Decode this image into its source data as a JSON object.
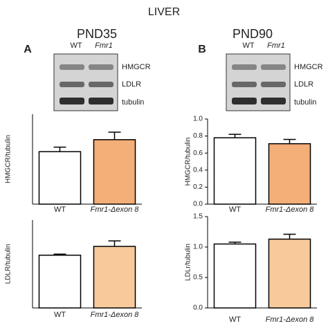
{
  "figure": {
    "title": "LIVER",
    "panels": [
      {
        "letter": "A",
        "label": "PND35",
        "lanes": [
          "WT",
          "Fmr1"
        ],
        "bands": [
          "HMGCR",
          "LDLR",
          "tubulin"
        ]
      },
      {
        "letter": "B",
        "label": "PND90",
        "lanes": [
          "WT",
          "Fmr1"
        ],
        "bands": [
          "HMGCR",
          "LDLR",
          "tubulin"
        ]
      }
    ]
  },
  "chart_data": [
    {
      "type": "bar",
      "ylabel": "HMGCR/tubulin",
      "categories": [
        "WT",
        "Fmr1-Δexon 8"
      ],
      "values": [
        0.35,
        0.43
      ],
      "errors": [
        0.03,
        0.05
      ],
      "colors": [
        "#ffffff",
        "#f4ae78"
      ],
      "ylim": [
        0,
        0.6
      ]
    },
    {
      "type": "bar",
      "ylabel": "LDLR/tubulin",
      "categories": [
        "WT",
        "Fmr1-Δexon 8"
      ],
      "values": [
        0.24,
        0.28
      ],
      "errors": [
        0.005,
        0.025
      ],
      "colors": [
        "#ffffff",
        "#f7c99b"
      ],
      "ylim": [
        0,
        0.4
      ]
    },
    {
      "type": "bar",
      "ylabel": "HMGCR/tubulin",
      "categories": [
        "WT",
        "Fmr1-Δexon 8"
      ],
      "values": [
        0.78,
        0.71
      ],
      "errors": [
        0.04,
        0.05
      ],
      "colors": [
        "#ffffff",
        "#f4ae78"
      ],
      "ylim": [
        0,
        1.0
      ],
      "yticks": [
        {
          "value": 0,
          "label": "0.0"
        },
        0.2,
        0.4,
        0.6,
        0.8,
        {
          "value": 1,
          "label": "1.0"
        }
      ]
    },
    {
      "type": "bar",
      "ylabel": "LDLr/tubulin",
      "categories": [
        "WT",
        "Fmr1-Δexon 8"
      ],
      "values": [
        1.05,
        1.13
      ],
      "errors": [
        0.03,
        0.08
      ],
      "colors": [
        "#ffffff",
        "#f7c99b"
      ],
      "ylim": [
        0,
        1.5
      ],
      "yticks": [
        {
          "value": 0,
          "label": "0.0"
        },
        0.5,
        {
          "value": 1,
          "label": "1.0"
        },
        1.5
      ]
    }
  ]
}
